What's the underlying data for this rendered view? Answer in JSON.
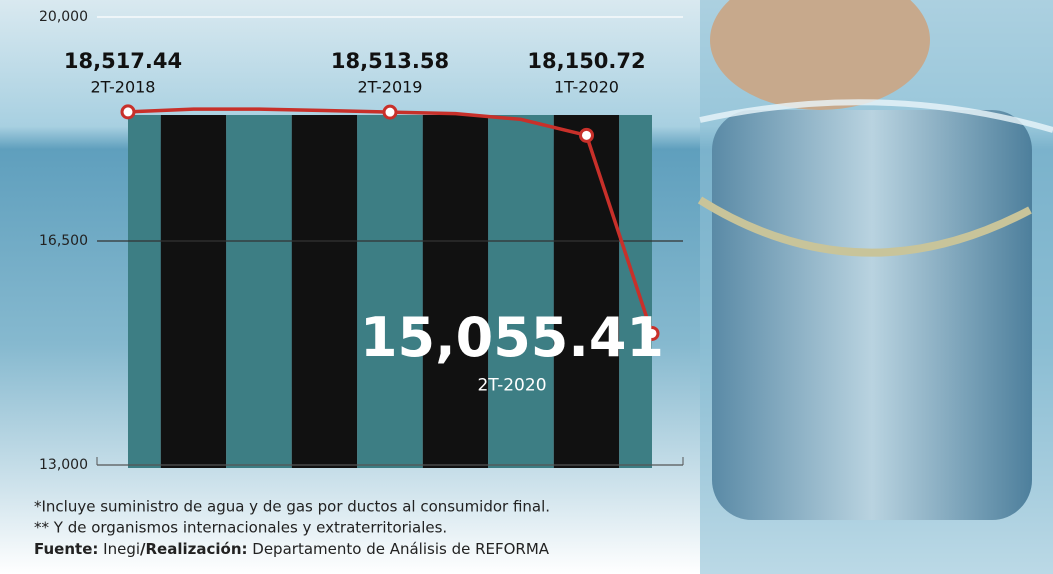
{
  "chart_data": {
    "type": "line",
    "categories": [
      "2T-2018",
      null,
      null,
      null,
      "2T-2019",
      null,
      null,
      "1T-2020",
      "2T-2020"
    ],
    "series": [
      {
        "color": "#c8302a",
        "values": [
          18517.44,
          18560,
          18560,
          18540,
          18513.58,
          18490,
          18400,
          18150.72,
          15055.41
        ],
        "value_labels": [
          "18,517.44",
          null,
          null,
          null,
          "18,513.58",
          null,
          null,
          "18,150.72",
          "15,055.41"
        ]
      }
    ],
    "ylim": [
      13000,
      20000
    ],
    "yticks": [
      {
        "value": 13000,
        "label": "13,000"
      },
      {
        "value": 16500,
        "label": "16,500"
      },
      {
        "value": 20000,
        "label": "20,000"
      }
    ],
    "grid": true,
    "notes": [
      "*Incluye suministro de agua y de gas por ductos al consumidor final.",
      "** Y  de organismos internacionales y extraterritoriales."
    ],
    "source_label": "Fuente:",
    "source": "Inegi",
    "credit_label": "/Realización:",
    "credit": "Departamento de Análisis de REFORMA"
  }
}
